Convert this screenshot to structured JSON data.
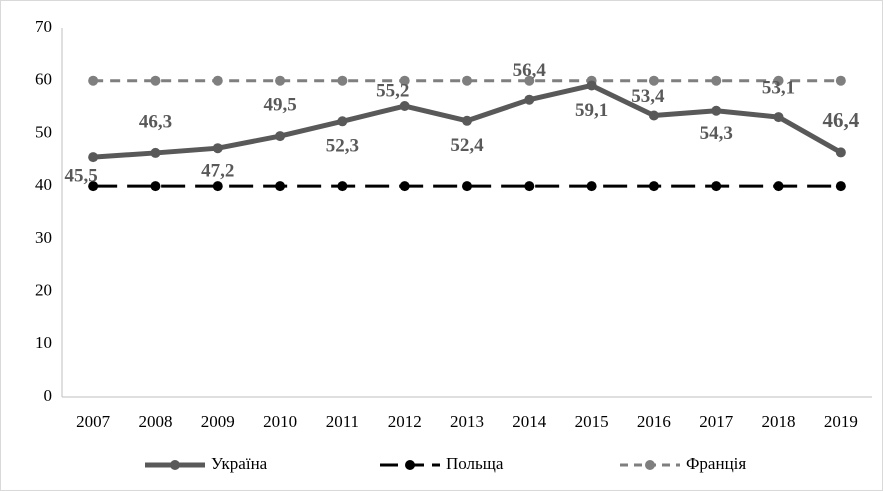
{
  "chart_data": {
    "type": "line",
    "categories": [
      "2007",
      "2008",
      "2009",
      "2010",
      "2011",
      "2012",
      "2013",
      "2014",
      "2015",
      "2016",
      "2017",
      "2018",
      "2019"
    ],
    "series": [
      {
        "name": "Україна",
        "color": "#595959",
        "values": [
          45.5,
          46.3,
          47.2,
          49.5,
          52.3,
          55.2,
          52.4,
          56.4,
          59.1,
          53.4,
          54.3,
          53.1,
          46.4
        ],
        "value_labels": [
          "45,5",
          "46,3",
          "47,2",
          "49,5",
          "52,3",
          "55,2",
          "52,4",
          "56,4",
          "59,1",
          "53,4",
          "54,3",
          "53,1",
          "46,4"
        ]
      },
      {
        "name": "Польща",
        "color": "#000000",
        "values": [
          40,
          40,
          40,
          40,
          40,
          40,
          40,
          40,
          40,
          40,
          40,
          40,
          40
        ]
      },
      {
        "name": "Франція",
        "color": "#7f7f7f",
        "values": [
          60,
          60,
          60,
          60,
          60,
          60,
          60,
          60,
          60,
          60,
          60,
          60,
          60
        ]
      }
    ],
    "ylim": [
      0,
      70
    ],
    "yticks": [
      0,
      10,
      20,
      30,
      40,
      50,
      60,
      70
    ],
    "grid": false,
    "legend": "bottom"
  }
}
